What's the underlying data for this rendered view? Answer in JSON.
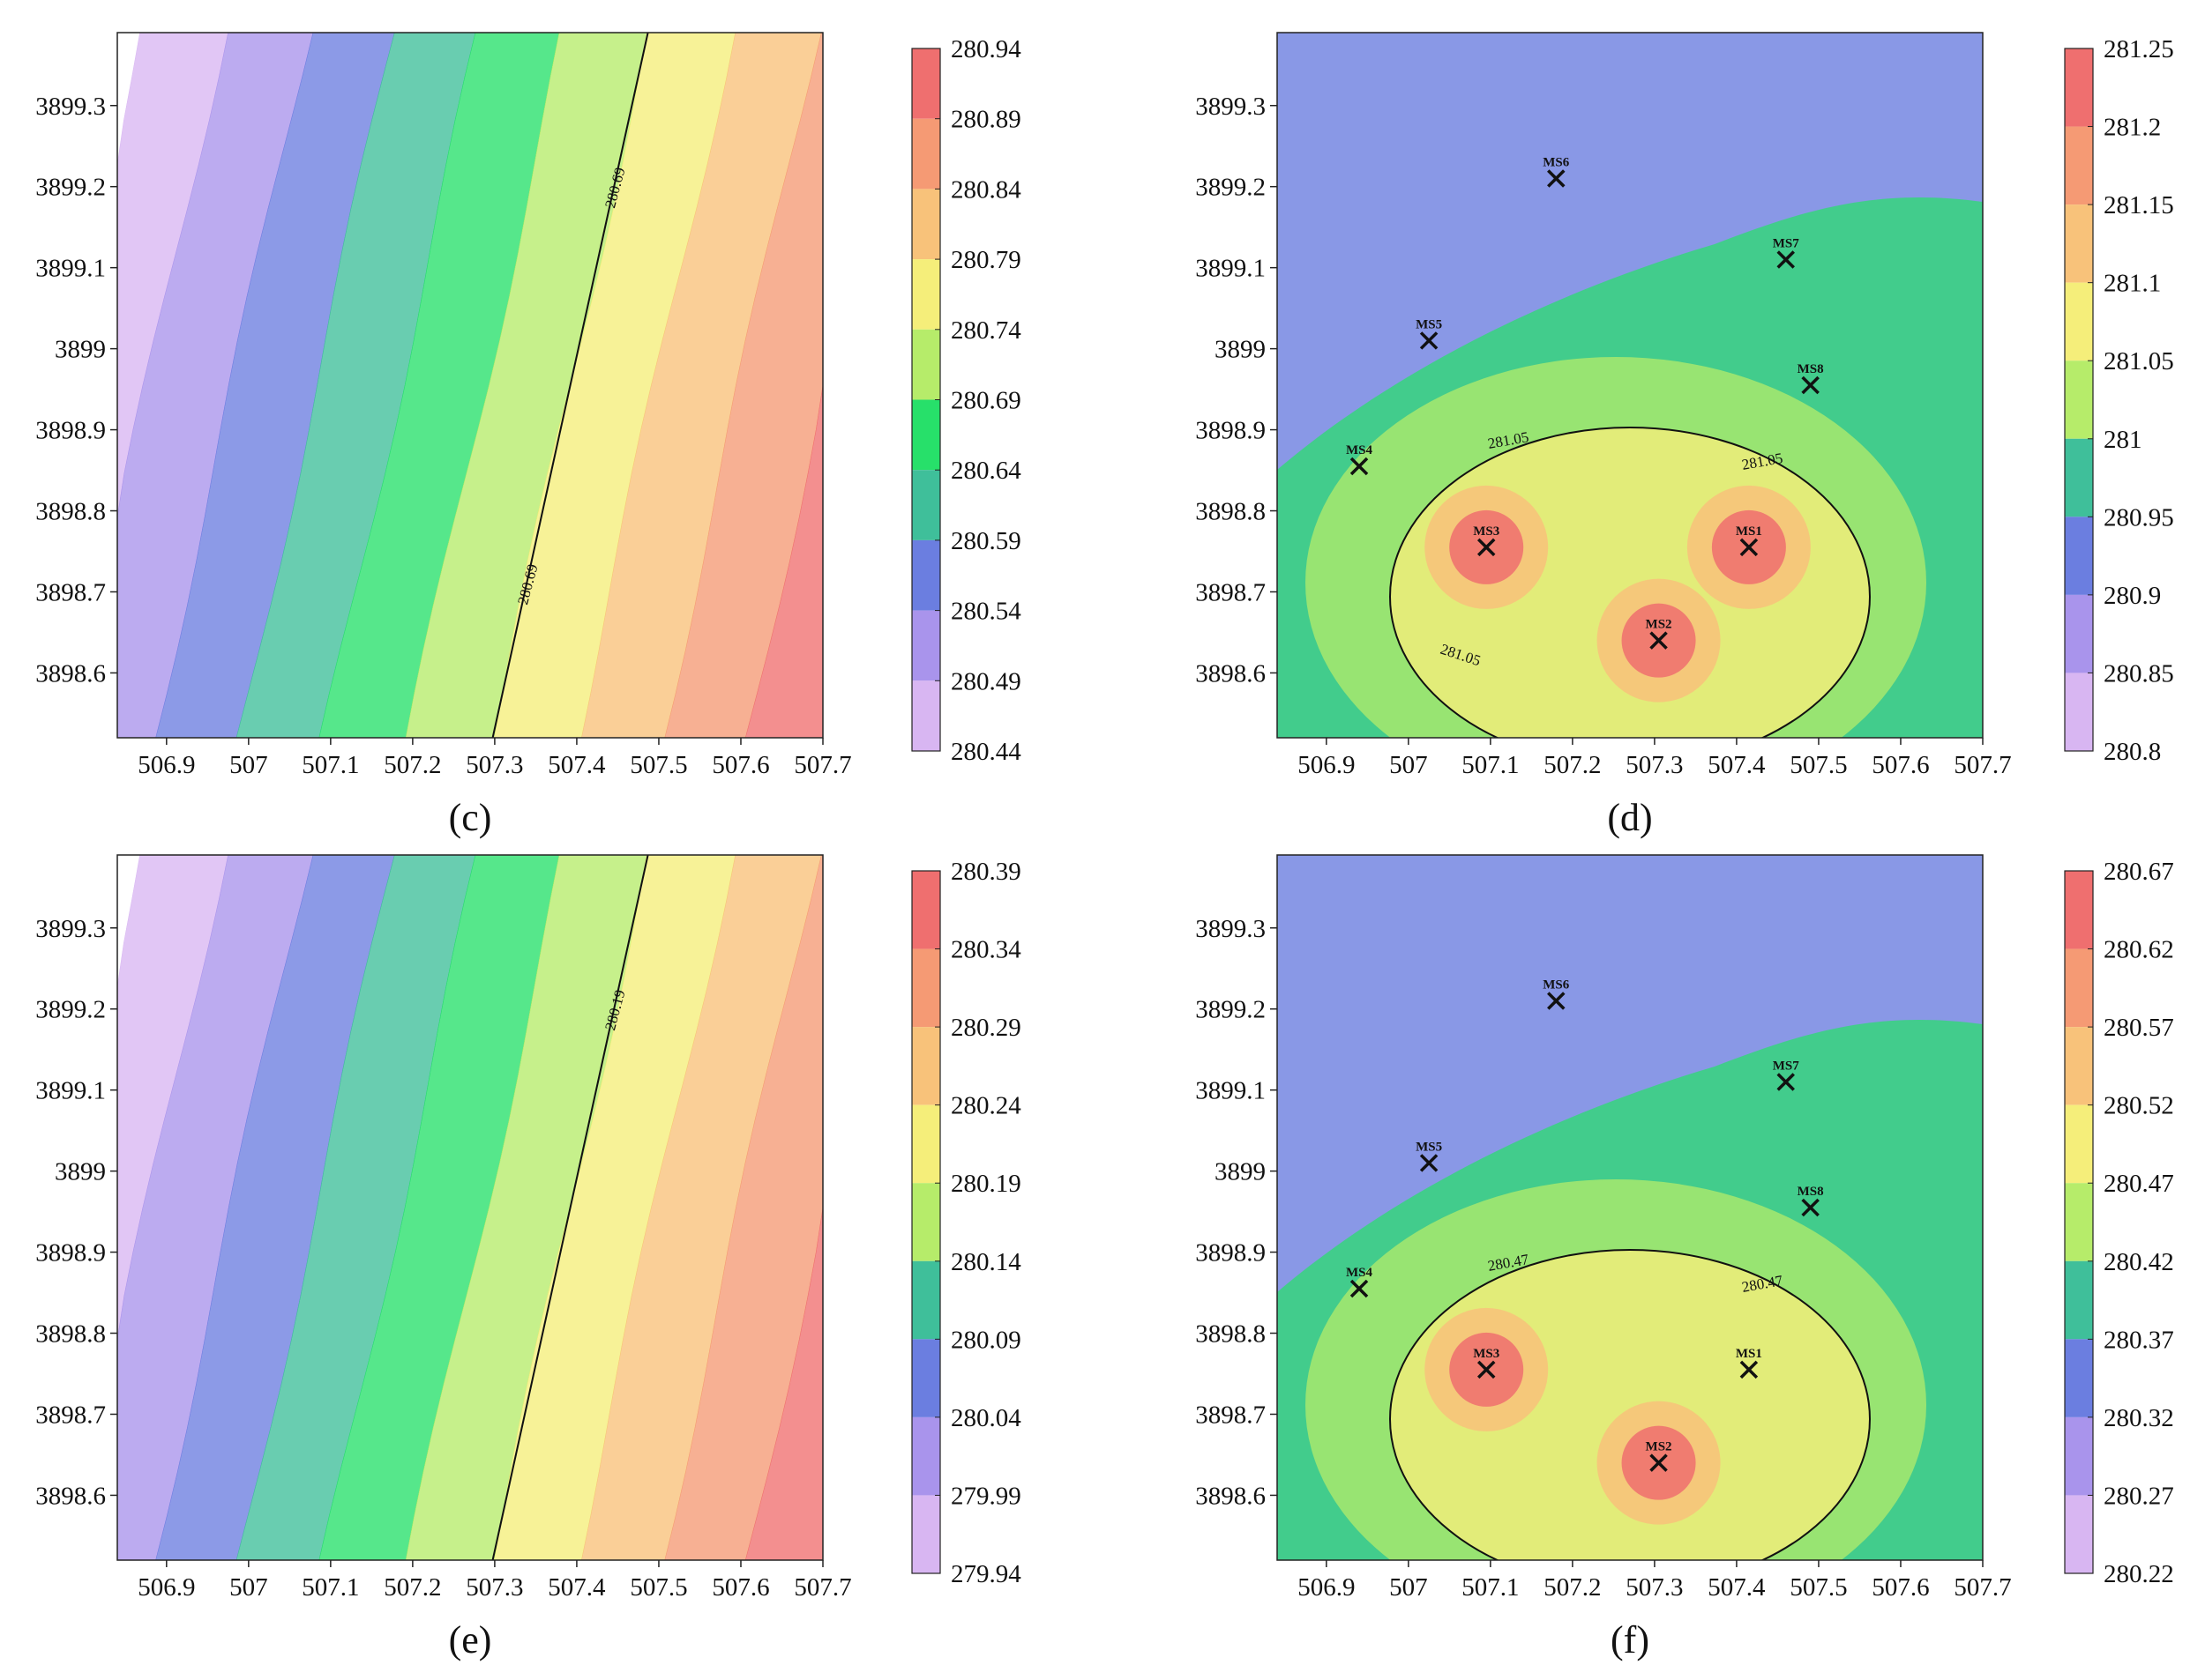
{
  "figure": {
    "x_ticks": [
      "506.9",
      "507",
      "507.1",
      "507.2",
      "507.3",
      "507.4",
      "507.5",
      "507.6",
      "507.7"
    ],
    "y_ticks": [
      "3899.3",
      "3899.2",
      "3899.1",
      "3899",
      "3898.9",
      "3898.8",
      "3898.7",
      "3898.6"
    ]
  },
  "chart_data": [
    {
      "type": "heatmap",
      "panel": "c",
      "title": "(c)",
      "pattern": "gradient",
      "xlim": [
        506.84,
        507.7
      ],
      "ylim": [
        3898.52,
        3899.39
      ],
      "x_ticks": [
        506.9,
        507,
        507.1,
        507.2,
        507.3,
        507.4,
        507.5,
        507.6,
        507.7
      ],
      "y_ticks": [
        3898.6,
        3898.7,
        3898.8,
        3898.9,
        3899,
        3899.1,
        3899.2,
        3899.3
      ],
      "colorbar_levels": [
        "280.94",
        "280.89",
        "280.84",
        "280.79",
        "280.74",
        "280.69",
        "280.64",
        "280.59",
        "280.54",
        "280.49",
        "280.44"
      ],
      "contour_labels": [
        "280.69",
        "280.69"
      ],
      "stations": []
    },
    {
      "type": "heatmap",
      "panel": "d",
      "title": "(d)",
      "pattern": "hotspot",
      "xlim": [
        506.84,
        507.7
      ],
      "ylim": [
        3898.52,
        3899.39
      ],
      "x_ticks": [
        506.9,
        507,
        507.1,
        507.2,
        507.3,
        507.4,
        507.5,
        507.6,
        507.7
      ],
      "y_ticks": [
        3898.6,
        3898.7,
        3898.8,
        3898.9,
        3899,
        3899.1,
        3899.2,
        3899.3
      ],
      "colorbar_levels": [
        "281.25",
        "281.2",
        "281.15",
        "281.1",
        "281.05",
        "281",
        "280.95",
        "280.9",
        "280.85",
        "280.8"
      ],
      "contour_labels": [
        "281.05",
        "281.05",
        "281.05"
      ],
      "stations": [
        {
          "name": "MS1",
          "x": 507.415,
          "y": 3898.755
        },
        {
          "name": "MS2",
          "x": 507.305,
          "y": 3898.64
        },
        {
          "name": "MS3",
          "x": 507.095,
          "y": 3898.755
        },
        {
          "name": "MS4",
          "x": 506.94,
          "y": 3898.855
        },
        {
          "name": "MS5",
          "x": 507.025,
          "y": 3899.01
        },
        {
          "name": "MS6",
          "x": 507.18,
          "y": 3899.21
        },
        {
          "name": "MS7",
          "x": 507.46,
          "y": 3899.11
        },
        {
          "name": "MS8",
          "x": 507.49,
          "y": 3898.955
        }
      ]
    },
    {
      "type": "heatmap",
      "panel": "e",
      "title": "(e)",
      "pattern": "gradient",
      "xlim": [
        506.84,
        507.7
      ],
      "ylim": [
        3898.52,
        3899.39
      ],
      "x_ticks": [
        506.9,
        507,
        507.1,
        507.2,
        507.3,
        507.4,
        507.5,
        507.6,
        507.7
      ],
      "y_ticks": [
        3898.6,
        3898.7,
        3898.8,
        3898.9,
        3899,
        3899.1,
        3899.2,
        3899.3
      ],
      "colorbar_levels": [
        "280.39",
        "280.34",
        "280.29",
        "280.24",
        "280.19",
        "280.14",
        "280.09",
        "280.04",
        "279.99",
        "279.94"
      ],
      "contour_labels": [
        "280.19"
      ],
      "stations": []
    },
    {
      "type": "heatmap",
      "panel": "f",
      "title": "(f)",
      "pattern": "hotspot2",
      "xlim": [
        506.84,
        507.7
      ],
      "ylim": [
        3898.52,
        3899.39
      ],
      "x_ticks": [
        506.9,
        507,
        507.1,
        507.2,
        507.3,
        507.4,
        507.5,
        507.6,
        507.7
      ],
      "y_ticks": [
        3898.6,
        3898.7,
        3898.8,
        3898.9,
        3899,
        3899.1,
        3899.2,
        3899.3
      ],
      "colorbar_levels": [
        "280.67",
        "280.62",
        "280.57",
        "280.52",
        "280.47",
        "280.42",
        "280.37",
        "280.32",
        "280.27",
        "280.22"
      ],
      "contour_labels": [
        "280.47",
        "280.47"
      ],
      "stations": [
        {
          "name": "MS1",
          "x": 507.415,
          "y": 3898.755
        },
        {
          "name": "MS2",
          "x": 507.305,
          "y": 3898.64
        },
        {
          "name": "MS3",
          "x": 507.095,
          "y": 3898.755
        },
        {
          "name": "MS4",
          "x": 506.94,
          "y": 3898.855
        },
        {
          "name": "MS5",
          "x": 507.025,
          "y": 3899.01
        },
        {
          "name": "MS6",
          "x": 507.18,
          "y": 3899.21
        },
        {
          "name": "MS7",
          "x": 507.46,
          "y": 3899.11
        },
        {
          "name": "MS8",
          "x": 507.49,
          "y": 3898.955
        }
      ]
    }
  ],
  "colors": {
    "scale": [
      "#d8b6f2",
      "#a994ec",
      "#6b7ee0",
      "#3fbf9a",
      "#27e06a",
      "#b6ec6a",
      "#f5ee7a",
      "#f8c27a",
      "#f59a74",
      "#ef6f6f"
    ]
  }
}
